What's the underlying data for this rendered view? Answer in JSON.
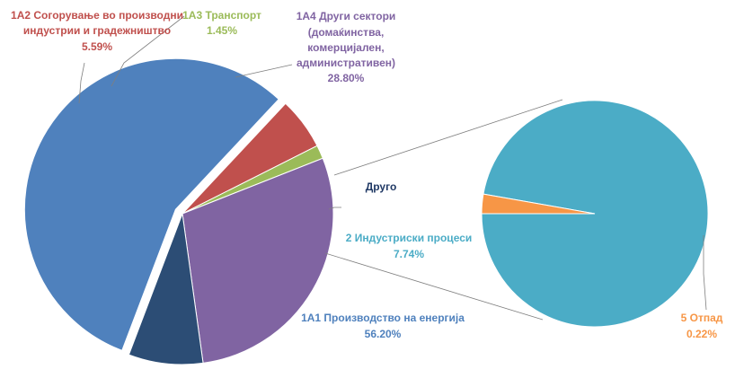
{
  "chart_data": [
    {
      "type": "pie",
      "slices": [
        {
          "name": "1A1 Производство  на енергија",
          "value": 56.2,
          "label": "56.20%",
          "color": "#4F81BD",
          "exploded": true
        },
        {
          "name": "1A2 Согорување  во производни индустрии  и градежништво",
          "value": 5.59,
          "label": "5.59%",
          "color": "#C0504D"
        },
        {
          "name": "1A3 Транспорт",
          "value": 1.45,
          "label": "1.45%",
          "color": "#9BBB59"
        },
        {
          "name": "1A4 Други сектори (домаќинства, комерцијален, административен)",
          "value": 28.8,
          "label": "28.80%",
          "color": "#8064A2"
        },
        {
          "name": "Друго",
          "value": 7.96,
          "label": "",
          "color": "#2C4D75"
        }
      ]
    },
    {
      "type": "pie",
      "breakout_of": "Друго",
      "slices": [
        {
          "name": "2 Индустриски  процеси",
          "value": 7.74,
          "label": "7.74%",
          "color": "#4BACC6"
        },
        {
          "name": "5 Отпад",
          "value": 0.22,
          "label": "0.22%",
          "color": "#F79646"
        }
      ]
    }
  ],
  "labels": {
    "energy_name": "1A1 Производство  на енергија",
    "energy_pct": "56.20%",
    "industry_name_1": "1A2 Согорување  во производни",
    "industry_name_2": "индустрии  и градежништво",
    "industry_pct": "5.59%",
    "transport_name": "1A3 Транспорт",
    "transport_pct": "1.45%",
    "other_sectors_1": "1A4 Други сектори",
    "other_sectors_2": "(домаќинства,",
    "other_sectors_3": "комерцијален,",
    "other_sectors_4": "административен)",
    "other_sectors_pct": "28.80%",
    "other": "Друго",
    "processes_name": "2 Индустриски  процеси",
    "processes_pct": "7.74%",
    "waste_name": "5 Отпад",
    "waste_pct": "0.22%"
  }
}
